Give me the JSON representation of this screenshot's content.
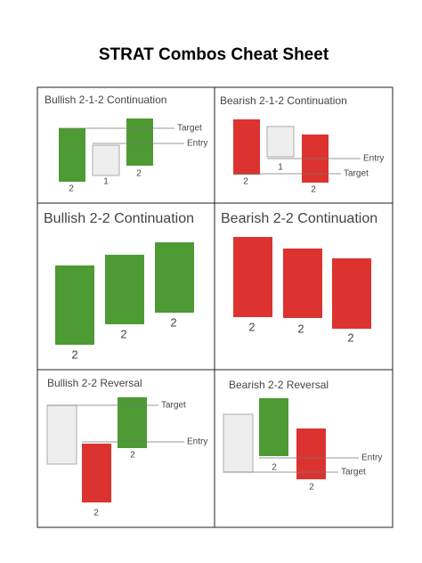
{
  "title": "STRAT Combos Cheat Sheet",
  "panels": [
    {
      "title": "Bullish 2-1-2 Continuation",
      "candle_labels": [
        "2",
        "1",
        "2"
      ],
      "line_labels": [
        "Target",
        "Entry"
      ]
    },
    {
      "title": "Bearish 2-1-2 Continuation",
      "candle_labels": [
        "2",
        "1",
        "2"
      ],
      "line_labels": [
        "Entry",
        "Target"
      ]
    },
    {
      "title": "Bullish 2-2 Continuation",
      "candle_labels": [
        "2",
        "2",
        "2"
      ],
      "line_labels": []
    },
    {
      "title": "Bearish 2-2 Continuation",
      "candle_labels": [
        "2",
        "2",
        "2"
      ],
      "line_labels": []
    },
    {
      "title": "Bullish 2-2 Reversal",
      "candle_labels": [
        "2",
        "2"
      ],
      "line_labels": [
        "Target",
        "Entry"
      ]
    },
    {
      "title": "Bearish 2-2 Reversal",
      "candle_labels": [
        "2",
        "2"
      ],
      "line_labels": [
        "Entry",
        "Target"
      ]
    }
  ]
}
